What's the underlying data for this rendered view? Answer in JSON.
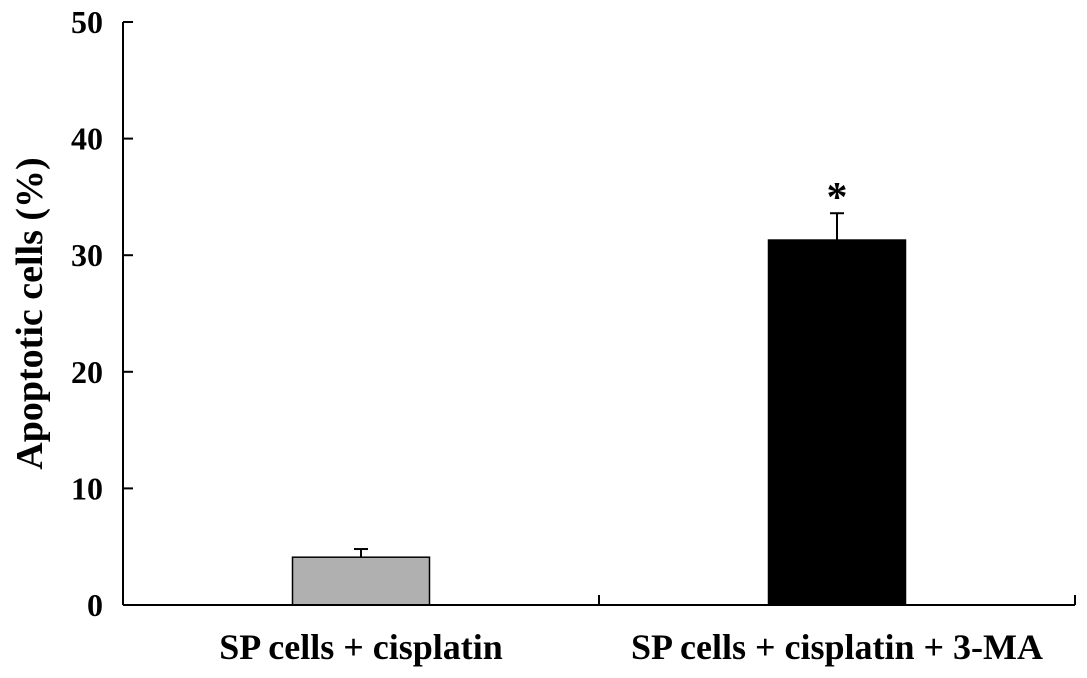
{
  "chart_data": {
    "type": "bar",
    "title": "",
    "xlabel": "",
    "ylabel": "Apoptotic cells (%)",
    "ylim": [
      0,
      50
    ],
    "yticks": [
      0,
      10,
      20,
      30,
      40,
      50
    ],
    "categories": [
      "SP cells + cisplatin",
      "SP cells + cisplatin + 3-MA"
    ],
    "values": [
      4.1,
      31.3
    ],
    "errors": [
      0.7,
      2.3
    ],
    "bar_colors": [
      "#b0b0b0",
      "#000000"
    ],
    "annotations": [
      "",
      "*"
    ],
    "grid": false,
    "legend": "none"
  }
}
